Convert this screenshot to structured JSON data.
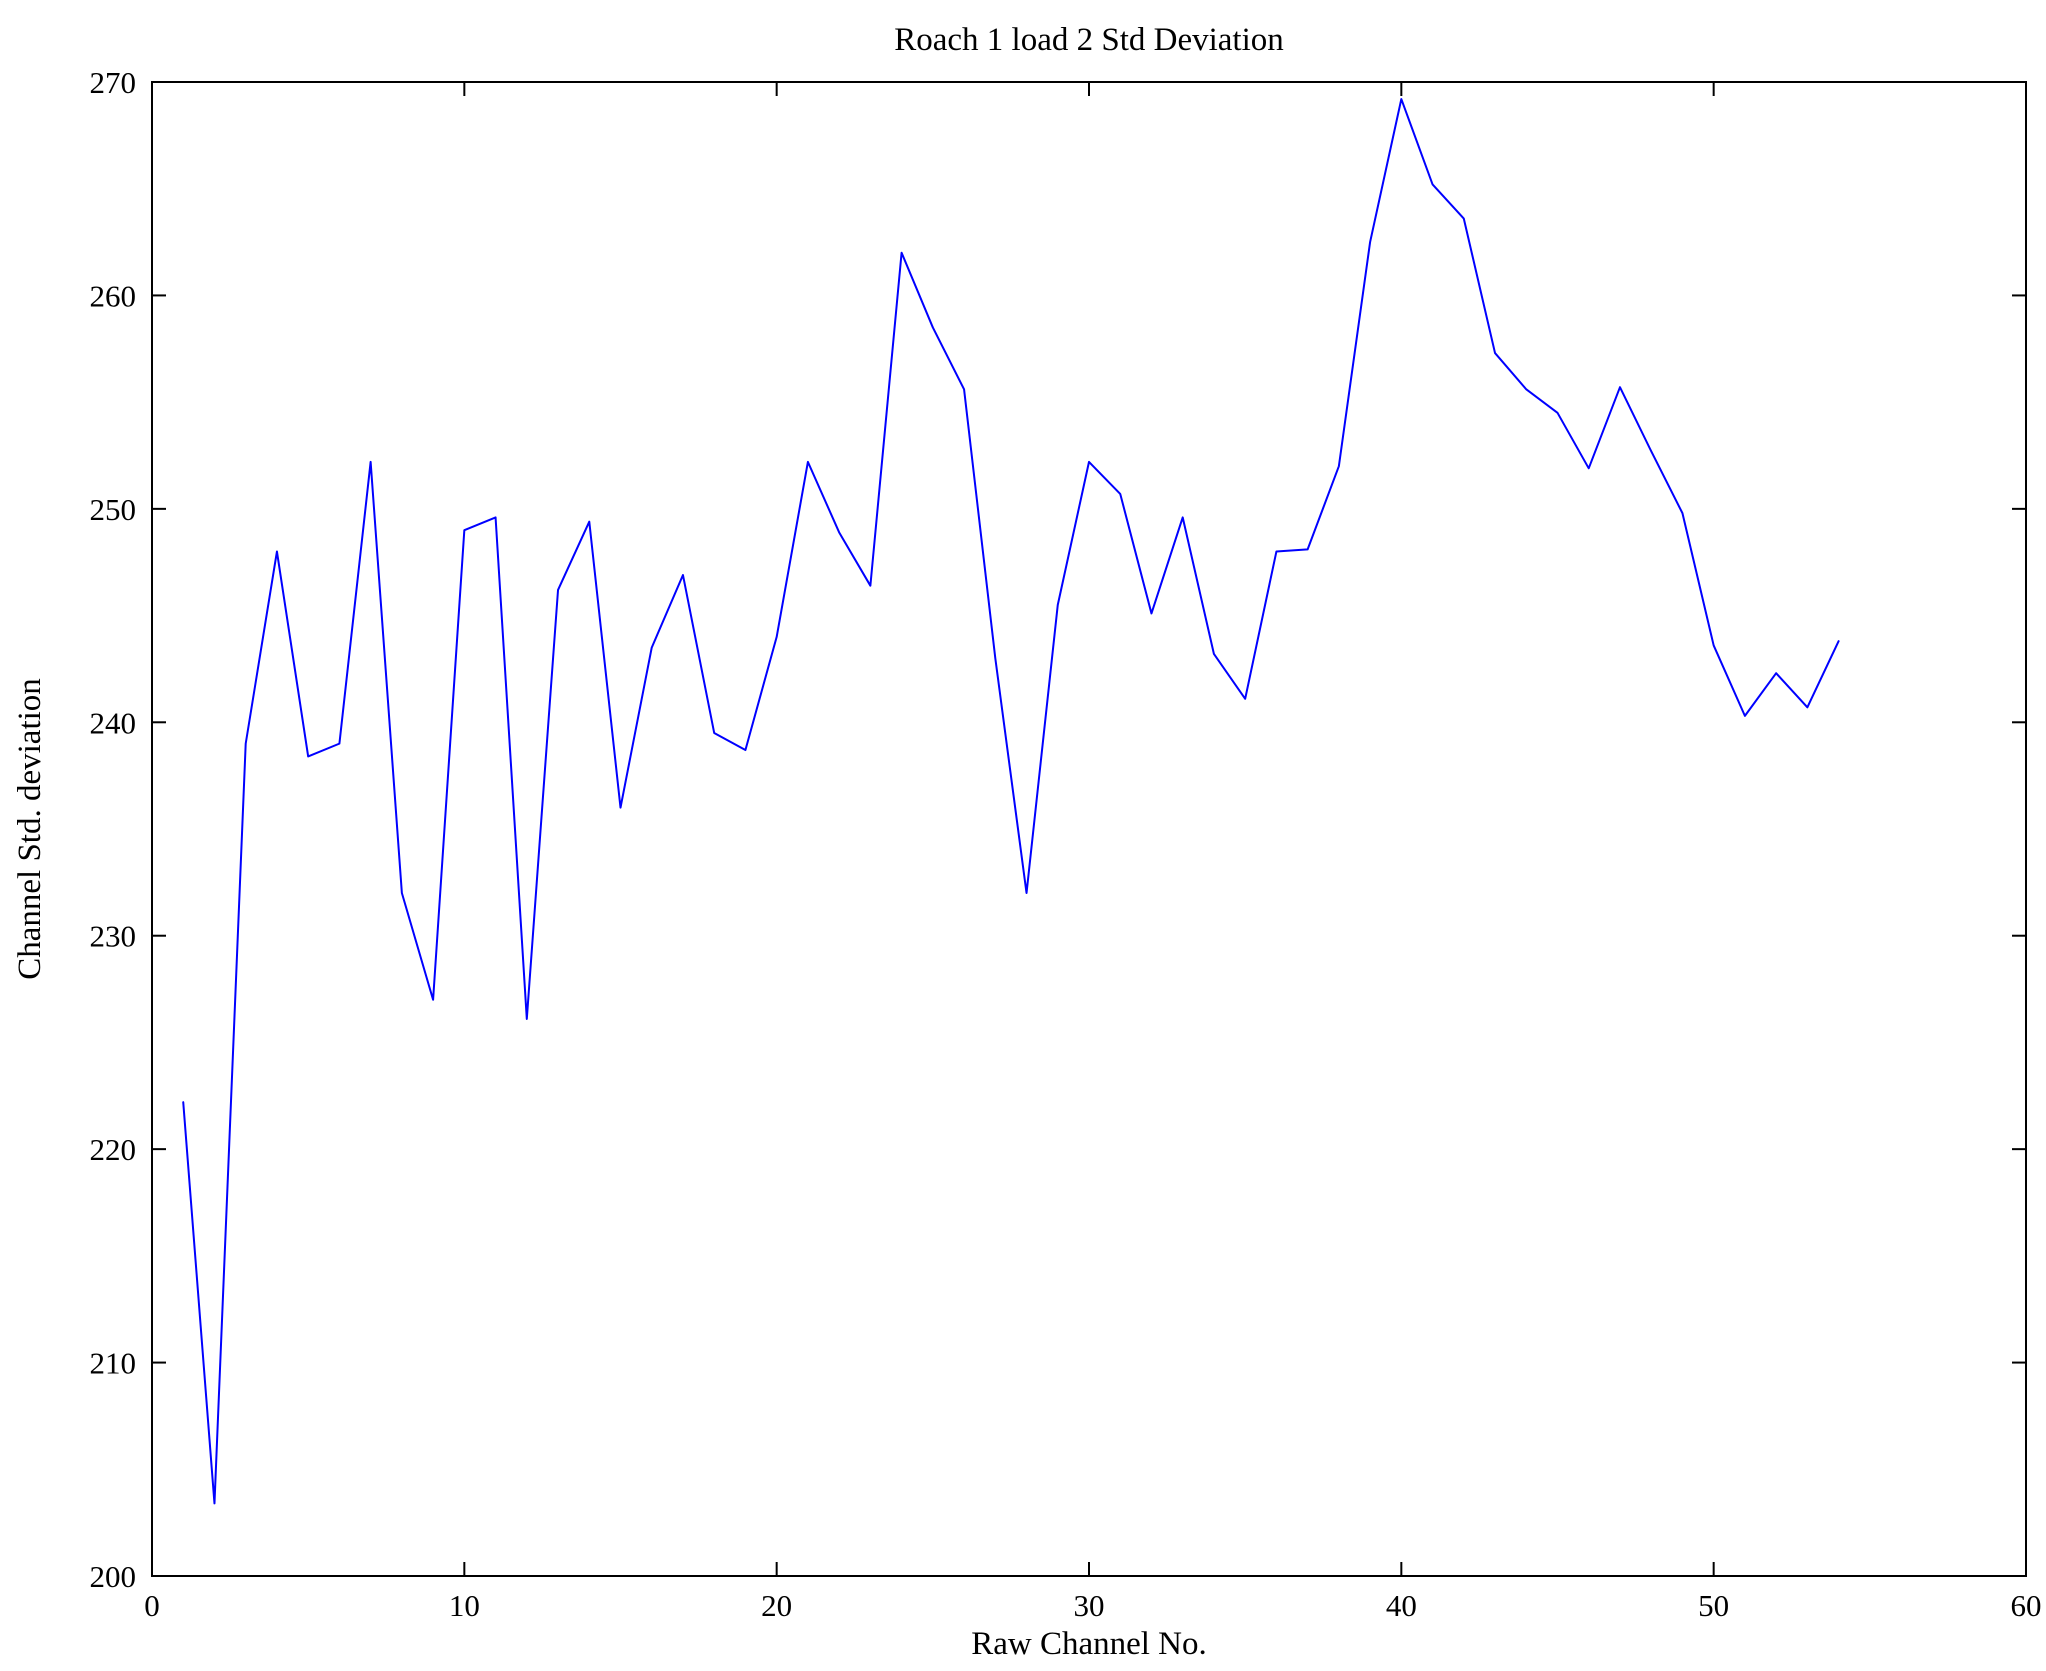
{
  "chart_data": {
    "type": "line",
    "title": "Roach 1 load 2 Std Deviation",
    "xlabel": "Raw Channel No.",
    "ylabel": "Channel Std. deviation",
    "xlim": [
      0,
      60
    ],
    "ylim": [
      200,
      270
    ],
    "xticks": [
      0,
      10,
      20,
      30,
      40,
      50,
      60
    ],
    "yticks": [
      200,
      210,
      220,
      230,
      240,
      250,
      260,
      270
    ],
    "grid": false,
    "legend": null,
    "line_color": "#0000ff",
    "x": [
      1,
      2,
      3,
      4,
      5,
      6,
      7,
      8,
      9,
      10,
      11,
      12,
      13,
      14,
      15,
      16,
      17,
      18,
      19,
      20,
      21,
      22,
      23,
      24,
      25,
      26,
      27,
      28,
      29,
      30,
      31,
      32,
      33,
      34,
      35,
      36,
      37,
      38,
      39,
      40,
      41,
      42,
      43,
      44,
      45,
      46,
      47,
      48,
      49,
      50,
      51,
      52,
      53,
      54
    ],
    "series": [
      {
        "name": "Channel Std. deviation",
        "values": [
          222.2,
          203.4,
          239.0,
          248.0,
          238.4,
          239.0,
          252.2,
          232.0,
          227.0,
          249.0,
          249.6,
          226.1,
          246.2,
          249.4,
          236.0,
          243.5,
          246.9,
          239.5,
          238.7,
          244.0,
          252.2,
          248.9,
          246.4,
          262.0,
          258.5,
          255.6,
          243.0,
          232.0,
          245.5,
          252.2,
          250.7,
          245.1,
          249.6,
          243.2,
          241.1,
          248.0,
          248.1,
          252.0,
          262.5,
          269.2,
          265.2,
          263.6,
          257.3,
          255.6,
          254.5,
          251.9,
          255.7,
          252.7,
          249.8,
          243.6,
          240.3,
          242.3,
          240.7,
          243.8
        ]
      }
    ]
  }
}
